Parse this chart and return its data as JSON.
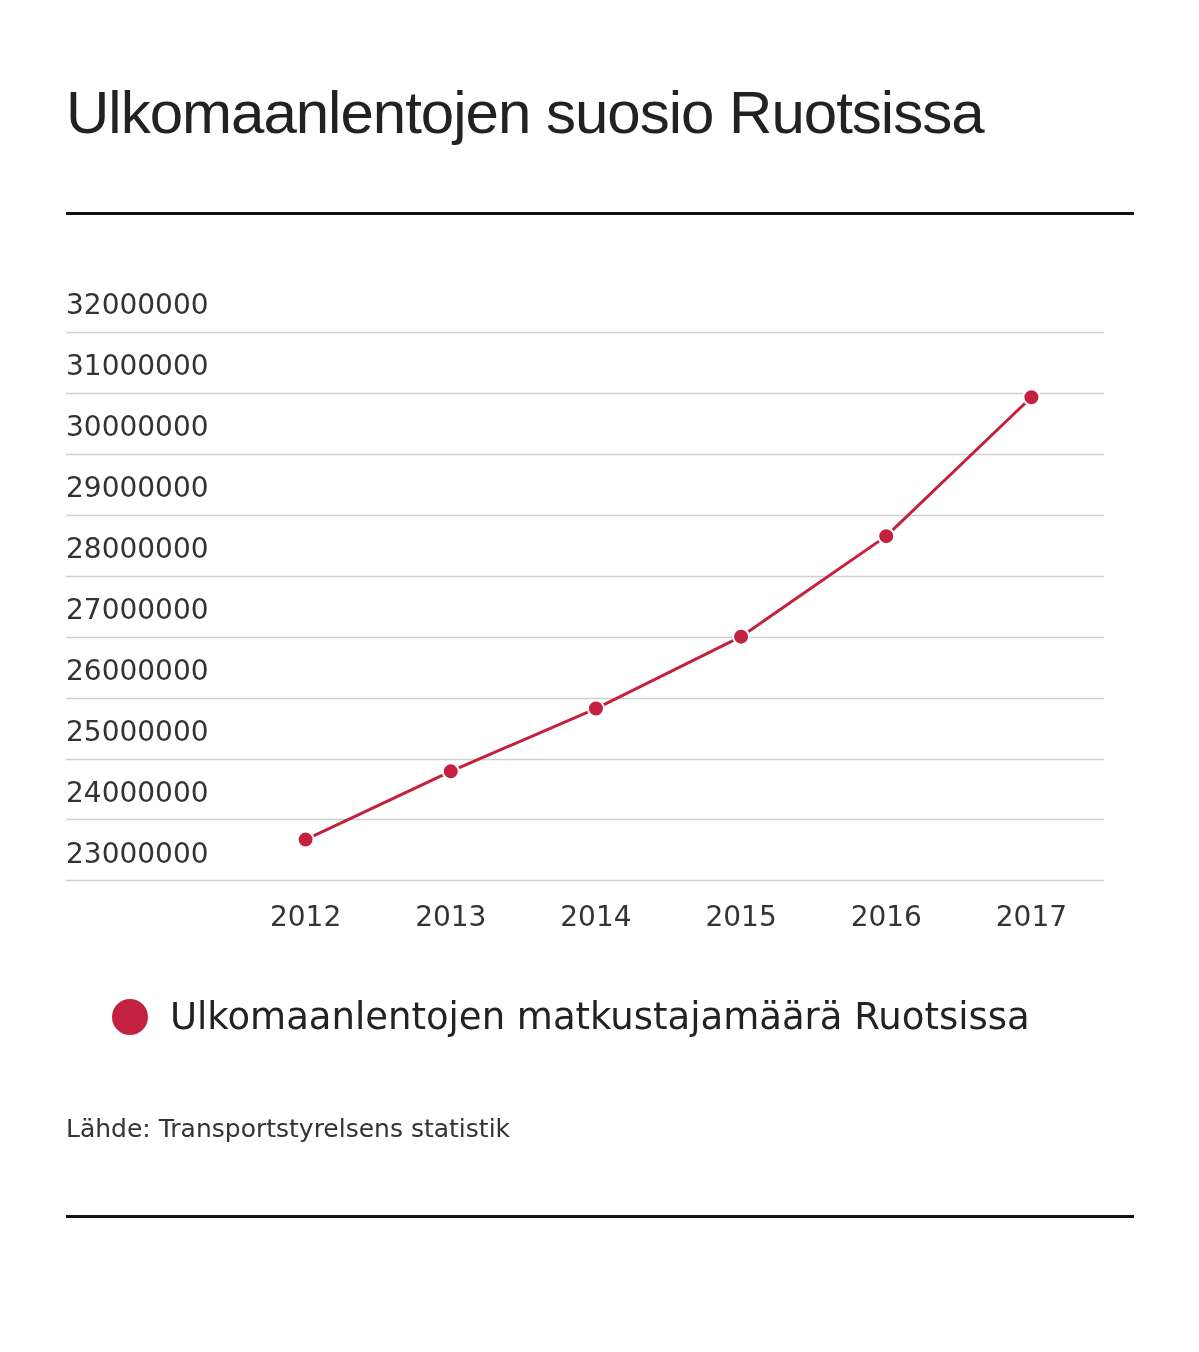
{
  "chart_data": {
    "type": "line",
    "title": "Ulkomaanlentojen suosio Ruotsissa",
    "categories": [
      "2012",
      "2013",
      "2014",
      "2015",
      "2016",
      "2017"
    ],
    "series": [
      {
        "name": "Ulkomaanlentojen matkustajamäärä Ruotsissa",
        "color": "#c4213f",
        "values": [
          23670000,
          24790000,
          25820000,
          27000000,
          28650000,
          30930000
        ]
      }
    ],
    "ylim": [
      23000000,
      32000000
    ],
    "yticks": [
      23000000,
      24000000,
      25000000,
      26000000,
      27000000,
      28000000,
      29000000,
      30000000,
      31000000,
      32000000
    ],
    "grid": "y",
    "legend": "bottom",
    "marker": "circle",
    "line_style": "solid",
    "annotations": [
      "Lähde: Transportstyrelsens statistik"
    ]
  }
}
